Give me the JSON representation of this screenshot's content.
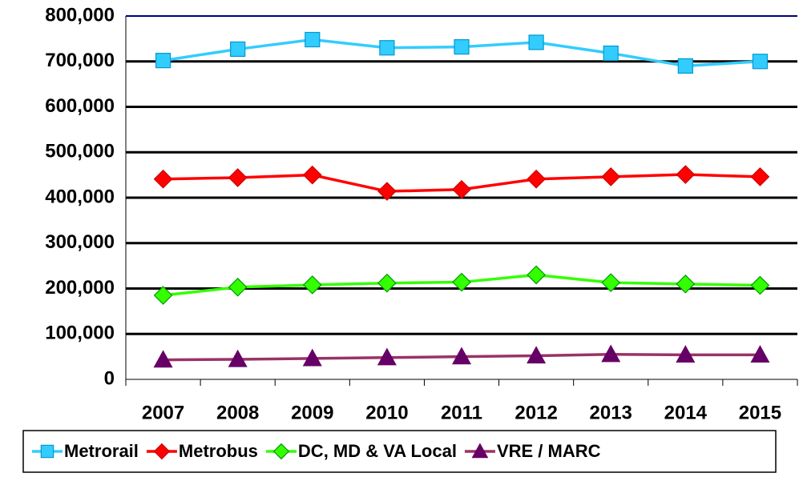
{
  "chart_data": {
    "type": "line",
    "categories": [
      "2007",
      "2008",
      "2009",
      "2010",
      "2011",
      "2012",
      "2013",
      "2014",
      "2015"
    ],
    "series": [
      {
        "name": "Metrorail",
        "color": "#33ccff",
        "marker": "square",
        "values": [
          702000,
          727000,
          748000,
          730000,
          732000,
          742000,
          718000,
          690000,
          700000
        ]
      },
      {
        "name": "Metrobus",
        "color": "#ff0000",
        "marker": "diamond",
        "values": [
          441000,
          444000,
          450000,
          414000,
          418000,
          441000,
          446000,
          451000,
          446000
        ]
      },
      {
        "name": "DC, MD & VA Local",
        "color": "#33ff00",
        "marker": "diamond",
        "values": [
          185000,
          203000,
          208000,
          212000,
          214000,
          230000,
          213000,
          210000,
          207000
        ]
      },
      {
        "name": "VRE / MARC",
        "color": "#993366",
        "marker": "triangle",
        "values": [
          43000,
          44000,
          46000,
          48000,
          50000,
          52000,
          55000,
          54000,
          54000
        ]
      }
    ],
    "ylim": [
      0,
      800000
    ],
    "yticks": [
      0,
      {
        "value": 100000,
        "label": "100,000"
      },
      {
        "value": 200000,
        "label": "200,000"
      },
      {
        "value": 300000,
        "label": "300,000"
      },
      {
        "value": 400000,
        "label": "400,000"
      },
      {
        "value": 500000,
        "label": "500,000"
      },
      {
        "value": 600000,
        "label": "600,000"
      },
      {
        "value": 700000,
        "label": "700,000"
      },
      {
        "value": 800000,
        "label": "800,000"
      }
    ],
    "grid": true,
    "legend": "bottom"
  }
}
